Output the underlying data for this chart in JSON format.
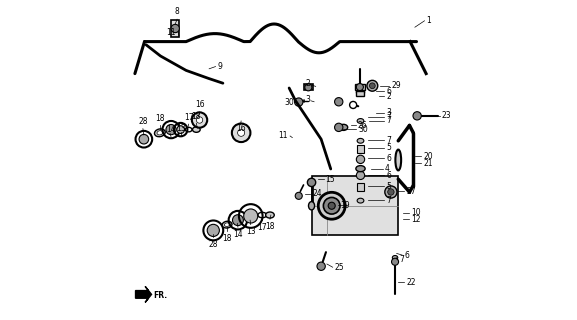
{
  "bg_color": "#ffffff",
  "line_color": "#000000",
  "fig_width": 5.77,
  "fig_height": 3.2,
  "dpi": 100
}
